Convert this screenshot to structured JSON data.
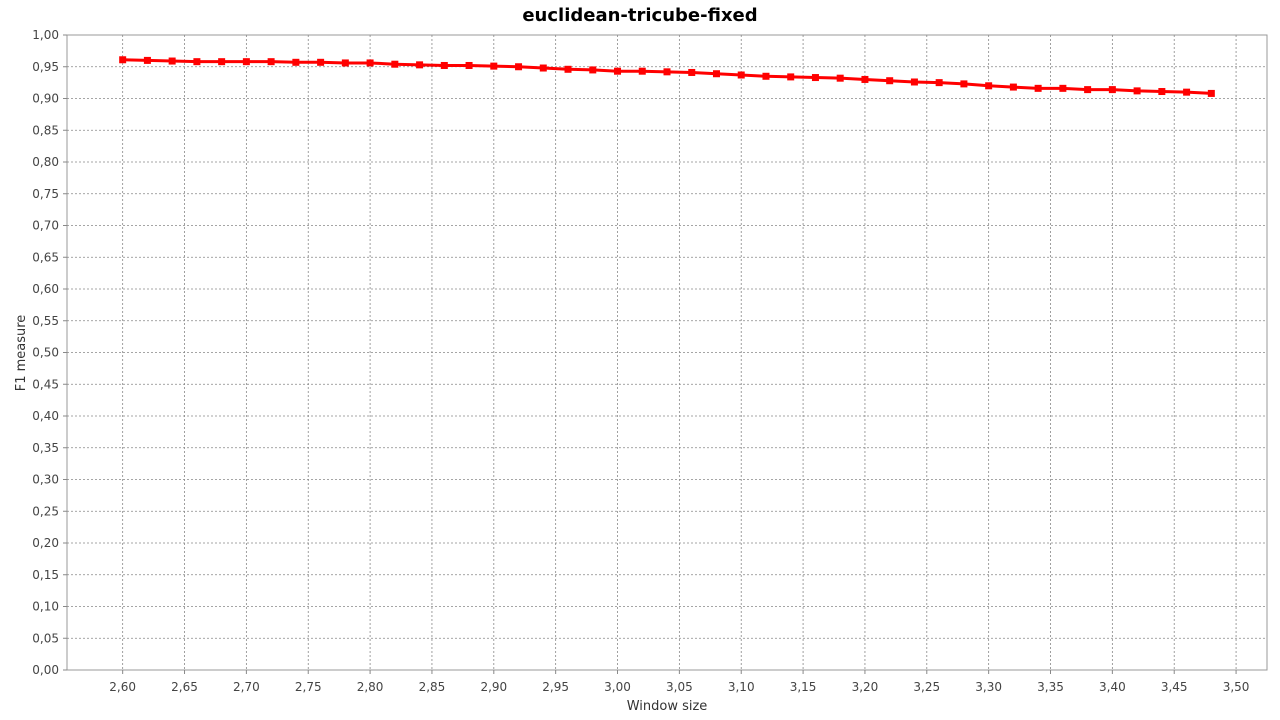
{
  "chart_data": {
    "type": "line",
    "title": "euclidean-tricube-fixed",
    "xlabel": "Window size",
    "ylabel": "F1 measure",
    "xlim": [
      2.555,
      3.525
    ],
    "ylim": [
      0.0,
      1.0
    ],
    "grid": true,
    "x_ticks": [
      "2,60",
      "2,65",
      "2,70",
      "2,75",
      "2,80",
      "2,85",
      "2,90",
      "2,95",
      "3,00",
      "3,05",
      "3,10",
      "3,15",
      "3,20",
      "3,25",
      "3,30",
      "3,35",
      "3,40",
      "3,45",
      "3,50"
    ],
    "x_tick_values": [
      2.6,
      2.65,
      2.7,
      2.75,
      2.8,
      2.85,
      2.9,
      2.95,
      3.0,
      3.05,
      3.1,
      3.15,
      3.2,
      3.25,
      3.3,
      3.35,
      3.4,
      3.45,
      3.5
    ],
    "y_ticks": [
      "0,00",
      "0,05",
      "0,10",
      "0,15",
      "0,20",
      "0,25",
      "0,30",
      "0,35",
      "0,40",
      "0,45",
      "0,50",
      "0,55",
      "0,60",
      "0,65",
      "0,70",
      "0,75",
      "0,80",
      "0,85",
      "0,90",
      "0,95",
      "1,00"
    ],
    "y_tick_values": [
      0.0,
      0.05,
      0.1,
      0.15,
      0.2,
      0.25,
      0.3,
      0.35,
      0.4,
      0.45,
      0.5,
      0.55,
      0.6,
      0.65,
      0.7,
      0.75,
      0.8,
      0.85,
      0.9,
      0.95,
      1.0
    ],
    "series": [
      {
        "color": "#ff0000",
        "x": [
          2.6,
          2.62,
          2.64,
          2.66,
          2.68,
          2.7,
          2.72,
          2.74,
          2.76,
          2.78,
          2.8,
          2.82,
          2.84,
          2.86,
          2.88,
          2.9,
          2.92,
          2.94,
          2.96,
          2.98,
          3.0,
          3.02,
          3.04,
          3.06,
          3.08,
          3.1,
          3.12,
          3.14,
          3.16,
          3.18,
          3.2,
          3.22,
          3.24,
          3.26,
          3.28,
          3.3,
          3.32,
          3.34,
          3.36,
          3.38,
          3.4,
          3.42,
          3.44,
          3.46,
          3.48
        ],
        "values": [
          0.961,
          0.96,
          0.959,
          0.958,
          0.958,
          0.958,
          0.958,
          0.957,
          0.957,
          0.956,
          0.956,
          0.954,
          0.953,
          0.952,
          0.952,
          0.951,
          0.95,
          0.948,
          0.946,
          0.945,
          0.943,
          0.943,
          0.942,
          0.941,
          0.939,
          0.937,
          0.935,
          0.934,
          0.933,
          0.932,
          0.93,
          0.928,
          0.926,
          0.925,
          0.923,
          0.92,
          0.918,
          0.916,
          0.916,
          0.914,
          0.914,
          0.912,
          0.911,
          0.91,
          0.908
        ]
      }
    ]
  }
}
